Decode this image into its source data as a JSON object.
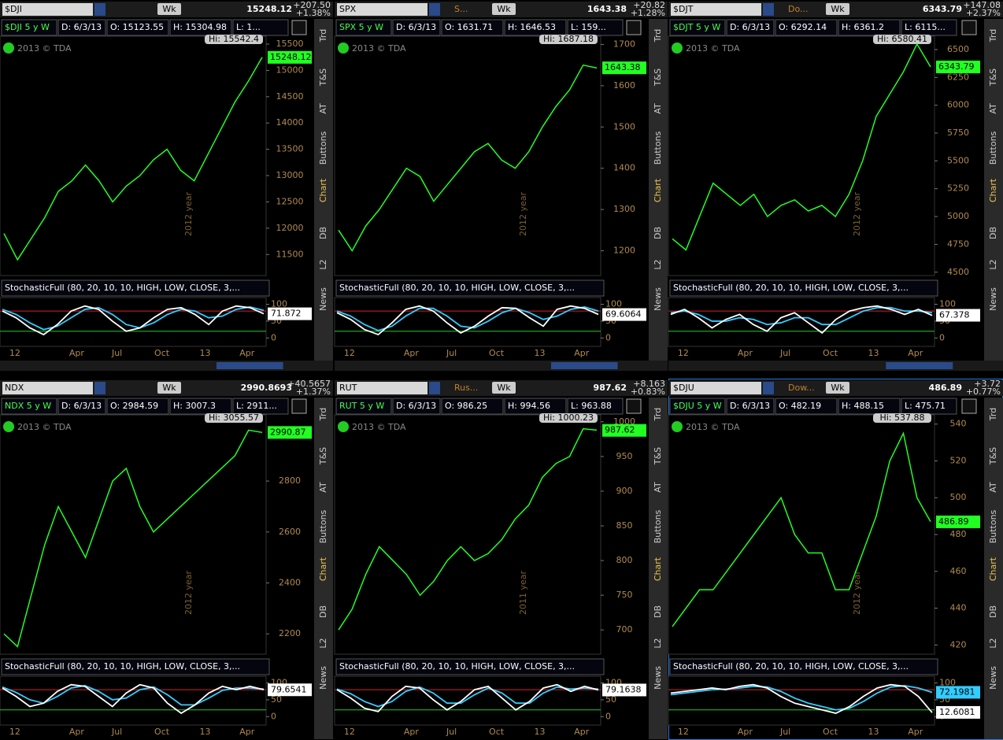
{
  "tabs": [
    "Trd",
    "T&S",
    "AT",
    "Buttons",
    "Chart",
    "DB",
    "L2",
    "News"
  ],
  "copyright": "2013 © TDA",
  "period_button": "Wk",
  "stoch_title": "StochasticFull (80, 20, 10, 10, HIGH, LOW, CLOSE, 3,...",
  "x_labels": [
    "12",
    "Apr",
    "Jul",
    "Oct",
    "13",
    "Apr"
  ],
  "stoch_ylim": [
    -25,
    120
  ],
  "stoch_yticks": [
    0,
    50,
    100
  ],
  "stoch_levels": [
    80,
    20
  ],
  "panels": [
    {
      "symbol": "$DJI",
      "price": "15248.12",
      "change": "+207.50",
      "change_pct": "+1.38%",
      "header": [
        "$DJI 5 y W",
        "D: 6/3/13",
        "O: 15123.55",
        "H: 15304.98",
        "L: 1..."
      ],
      "hi_label": "Hi: 15542.4",
      "price_label": 15248.12,
      "year_label": "2012 year",
      "ylim": [
        11100,
        15650
      ],
      "yticks": [
        11500,
        12000,
        12500,
        13000,
        13500,
        14000,
        14500,
        15000,
        15500
      ],
      "closes": [
        11900,
        11400,
        11800,
        12200,
        12700,
        12900,
        13200,
        12900,
        12500,
        12800,
        13000,
        13300,
        13500,
        13100,
        12900,
        13400,
        13900,
        14400,
        14800,
        15250
      ],
      "stoch_k": [
        80,
        60,
        30,
        10,
        40,
        80,
        95,
        85,
        50,
        20,
        30,
        60,
        85,
        90,
        70,
        40,
        80,
        95,
        90,
        72
      ],
      "stoch_d": [
        85,
        70,
        45,
        25,
        35,
        60,
        85,
        90,
        70,
        40,
        30,
        45,
        70,
        85,
        80,
        60,
        65,
        85,
        92,
        82
      ],
      "stoch_values": [
        71.872
      ]
    },
    {
      "symbol": "SPX",
      "description": "S...",
      "price": "1643.38",
      "change": "+20.82",
      "change_pct": "+1.28%",
      "header": [
        "SPX 5 y W",
        "D: 6/3/13",
        "O: 1631.71",
        "H: 1646.53",
        "L: 159..."
      ],
      "hi_label": "Hi: 1687.18",
      "price_label": 1643.38,
      "year_label": "2012 year",
      "ylim": [
        1140,
        1720
      ],
      "yticks": [
        1200,
        1300,
        1400,
        1500,
        1600,
        1700
      ],
      "closes": [
        1250,
        1200,
        1260,
        1300,
        1350,
        1400,
        1380,
        1320,
        1360,
        1400,
        1440,
        1460,
        1420,
        1400,
        1440,
        1500,
        1550,
        1590,
        1650,
        1643
      ],
      "stoch_k": [
        75,
        55,
        25,
        10,
        45,
        85,
        95,
        80,
        45,
        15,
        35,
        65,
        90,
        88,
        60,
        35,
        85,
        95,
        88,
        70
      ],
      "stoch_d": [
        80,
        65,
        40,
        22,
        35,
        65,
        88,
        88,
        65,
        35,
        30,
        50,
        75,
        88,
        75,
        55,
        65,
        85,
        92,
        80
      ],
      "stoch_values": [
        69.6064
      ]
    },
    {
      "symbol": "$DJT",
      "description": "Do...",
      "price": "6343.79",
      "change": "+147.08",
      "change_pct": "+2.37%",
      "header": [
        "$DJT 5 y W",
        "D: 6/3/13",
        "O: 6292.14",
        "H: 6361.2",
        "L: 6115..."
      ],
      "hi_label": "Hi: 6580.41",
      "price_label": 6343.79,
      "year_label": "2012 year",
      "ylim": [
        4470,
        6620
      ],
      "yticks": [
        4500,
        4750,
        5000,
        5250,
        5500,
        5750,
        6000,
        6250,
        6500
      ],
      "closes": [
        4800,
        4700,
        5000,
        5300,
        5200,
        5100,
        5200,
        5000,
        5100,
        5150,
        5050,
        5100,
        5000,
        5200,
        5500,
        5900,
        6100,
        6300,
        6550,
        6344
      ],
      "stoch_k": [
        70,
        85,
        60,
        30,
        55,
        70,
        40,
        20,
        60,
        75,
        45,
        15,
        55,
        80,
        90,
        95,
        85,
        70,
        85,
        67
      ],
      "stoch_d": [
        75,
        80,
        70,
        50,
        50,
        60,
        55,
        40,
        45,
        60,
        60,
        40,
        40,
        60,
        80,
        90,
        90,
        80,
        80,
        75
      ],
      "stoch_values": [
        67.378
      ]
    },
    {
      "symbol": "NDX",
      "price": "2990.8693",
      "change": "+40.5657",
      "change_pct": "+1.37%",
      "header": [
        "NDX 5 y W",
        "D: 6/3/13",
        "O: 2984.59",
        "H: 3007.3",
        "L: 2911..."
      ],
      "hi_label": "Hi: 3055.57",
      "price_label": 2990.87,
      "year_label": "2012 year",
      "ylim": [
        2120,
        3060
      ],
      "yticks": [
        2200,
        2400,
        2600,
        2800
      ],
      "closes": [
        2200,
        2150,
        2350,
        2550,
        2700,
        2600,
        2500,
        2650,
        2800,
        2850,
        2700,
        2600,
        2650,
        2700,
        2750,
        2800,
        2850,
        2900,
        3000,
        2991
      ],
      "stoch_k": [
        85,
        60,
        30,
        40,
        75,
        95,
        90,
        60,
        30,
        70,
        95,
        85,
        40,
        10,
        35,
        70,
        90,
        80,
        90,
        80
      ],
      "stoch_d": [
        88,
        72,
        50,
        40,
        60,
        85,
        92,
        75,
        50,
        55,
        80,
        88,
        65,
        35,
        35,
        55,
        78,
        85,
        85,
        82
      ],
      "stoch_values": [
        79.6541
      ]
    },
    {
      "symbol": "RUT",
      "description": "Rus...",
      "price": "987.62",
      "change": "+8.163",
      "change_pct": "+0.83%",
      "header": [
        "RUT 5 y W",
        "D: 6/3/13",
        "O: 986.25",
        "H: 994.56",
        "L: 963.88"
      ],
      "hi_label": "Hi: 1000.23",
      "price_label": 987.62,
      "year_label": "2011 year",
      "ylim": [
        665,
        1010
      ],
      "yticks": [
        700,
        750,
        800,
        850,
        900,
        950,
        1000
      ],
      "closes": [
        700,
        730,
        780,
        820,
        800,
        780,
        750,
        770,
        800,
        820,
        800,
        810,
        830,
        860,
        880,
        920,
        940,
        950,
        990,
        988
      ],
      "stoch_k": [
        80,
        55,
        25,
        15,
        60,
        90,
        85,
        50,
        20,
        45,
        80,
        90,
        55,
        20,
        45,
        85,
        95,
        75,
        90,
        79
      ],
      "stoch_d": [
        82,
        68,
        45,
        30,
        45,
        75,
        88,
        70,
        40,
        40,
        65,
        85,
        70,
        40,
        40,
        70,
        88,
        82,
        85,
        82
      ],
      "stoch_values": [
        79.1638
      ]
    },
    {
      "symbol": "$DJU",
      "description": "Dow...",
      "price": "486.89",
      "change": "+3.72",
      "change_pct": "+0.77%",
      "header": [
        "$DJU 5 y W",
        "D: 6/3/13",
        "O: 482.19",
        "H: 488.15",
        "L: 475.71"
      ],
      "hi_label": "Hi: 537.88",
      "price_label": 486.89,
      "year_label": "2012 year",
      "ylim": [
        415,
        545
      ],
      "yticks": [
        420,
        440,
        460,
        480,
        500,
        520,
        540
      ],
      "closes": [
        430,
        440,
        450,
        450,
        460,
        470,
        480,
        490,
        500,
        480,
        470,
        470,
        450,
        450,
        470,
        490,
        520,
        535,
        500,
        487
      ],
      "stoch_k": [
        70,
        75,
        80,
        85,
        80,
        90,
        95,
        85,
        60,
        40,
        30,
        20,
        10,
        30,
        60,
        85,
        95,
        90,
        60,
        12
      ],
      "stoch_d": [
        65,
        70,
        75,
        80,
        82,
        85,
        90,
        88,
        75,
        55,
        40,
        30,
        20,
        25,
        45,
        70,
        88,
        92,
        85,
        72
      ],
      "stoch_values": [
        72.1981,
        12.6081
      ]
    }
  ]
}
